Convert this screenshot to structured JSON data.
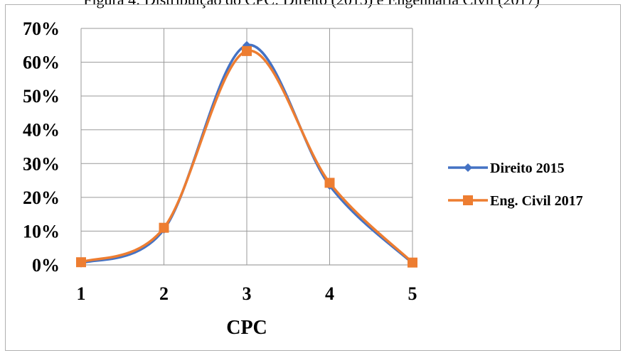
{
  "caption": "Figura 4: Distribuição do CPC: Direito (2015) e Engenharia Civil (2017)",
  "chart_data": {
    "type": "line",
    "x": [
      1,
      2,
      3,
      4,
      5
    ],
    "xlabel": "CPC",
    "ylabel": "",
    "ylim": [
      0,
      0.7
    ],
    "yticks": [
      "0%",
      "10%",
      "20%",
      "30%",
      "40%",
      "50%",
      "60%",
      "70%"
    ],
    "xticks": [
      "1",
      "2",
      "3",
      "4",
      "5"
    ],
    "grid": true,
    "smooth": true,
    "legend": "right",
    "series": [
      {
        "name": "Direito 2015",
        "values": [
          0.005,
          0.105,
          0.65,
          0.235,
          0.005
        ],
        "color": "#4472C4",
        "marker": "diamond"
      },
      {
        "name": "Eng. Civil 2017",
        "values": [
          0.008,
          0.11,
          0.633,
          0.243,
          0.007
        ],
        "color": "#ED7D31",
        "marker": "square"
      }
    ]
  }
}
